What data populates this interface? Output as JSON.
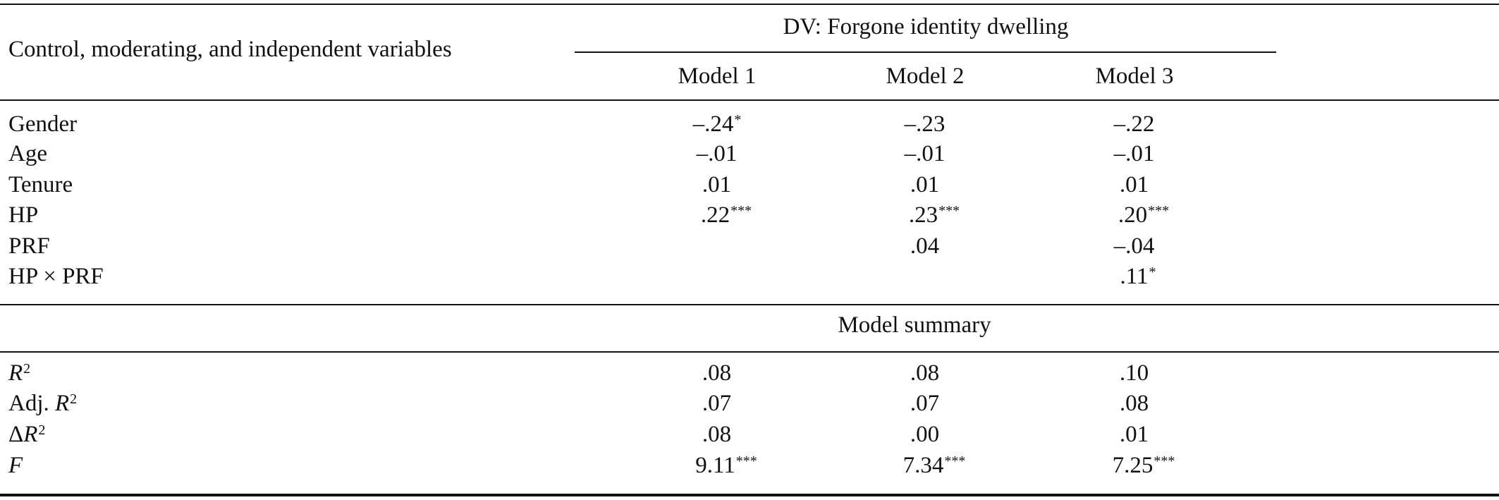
{
  "table": {
    "stub_header": "Control, moderating, and independent variables",
    "dv_header": "DV: Forgone identity dwelling",
    "model_headers": [
      "Model 1",
      "Model 2",
      "Model 3"
    ],
    "rows": [
      {
        "label": "Gender",
        "cells": [
          {
            "v": "–.24",
            "s": "*"
          },
          {
            "v": "–.23",
            "s": ""
          },
          {
            "v": "–.22",
            "s": ""
          }
        ]
      },
      {
        "label": "Age",
        "cells": [
          {
            "v": "–.01",
            "s": ""
          },
          {
            "v": "–.01",
            "s": ""
          },
          {
            "v": "–.01",
            "s": ""
          }
        ]
      },
      {
        "label": "Tenure",
        "cells": [
          {
            "v": ".01",
            "s": ""
          },
          {
            "v": ".01",
            "s": ""
          },
          {
            "v": ".01",
            "s": ""
          }
        ]
      },
      {
        "label": "HP",
        "cells": [
          {
            "v": ".22",
            "s": "***"
          },
          {
            "v": ".23",
            "s": "***"
          },
          {
            "v": ".20",
            "s": "***"
          }
        ]
      },
      {
        "label": "PRF",
        "cells": [
          {
            "v": "",
            "s": ""
          },
          {
            "v": ".04",
            "s": ""
          },
          {
            "v": "–.04",
            "s": ""
          }
        ]
      },
      {
        "label": "HP × PRF",
        "cells": [
          {
            "v": "",
            "s": ""
          },
          {
            "v": "",
            "s": ""
          },
          {
            "v": ".11",
            "s": "*"
          }
        ]
      }
    ],
    "summary_header": "Model summary",
    "summary_rows": [
      {
        "label_pre": "",
        "label_it": "R",
        "label_sup": "2",
        "cells": [
          {
            "v": ".08",
            "s": ""
          },
          {
            "v": ".08",
            "s": ""
          },
          {
            "v": ".10",
            "s": ""
          }
        ]
      },
      {
        "label_pre": "Adj. ",
        "label_it": "R",
        "label_sup": "2",
        "cells": [
          {
            "v": ".07",
            "s": ""
          },
          {
            "v": ".07",
            "s": ""
          },
          {
            "v": ".08",
            "s": ""
          }
        ]
      },
      {
        "label_pre": "Δ",
        "label_it": "R",
        "label_sup": "2",
        "cells": [
          {
            "v": ".08",
            "s": ""
          },
          {
            "v": ".00",
            "s": ""
          },
          {
            "v": ".01",
            "s": ""
          }
        ]
      },
      {
        "label_pre": "",
        "label_it": "F",
        "label_sup": "",
        "cells": [
          {
            "v": "9.11",
            "s": "***"
          },
          {
            "v": "7.34",
            "s": "***"
          },
          {
            "v": "7.25",
            "s": "***"
          }
        ]
      }
    ]
  }
}
